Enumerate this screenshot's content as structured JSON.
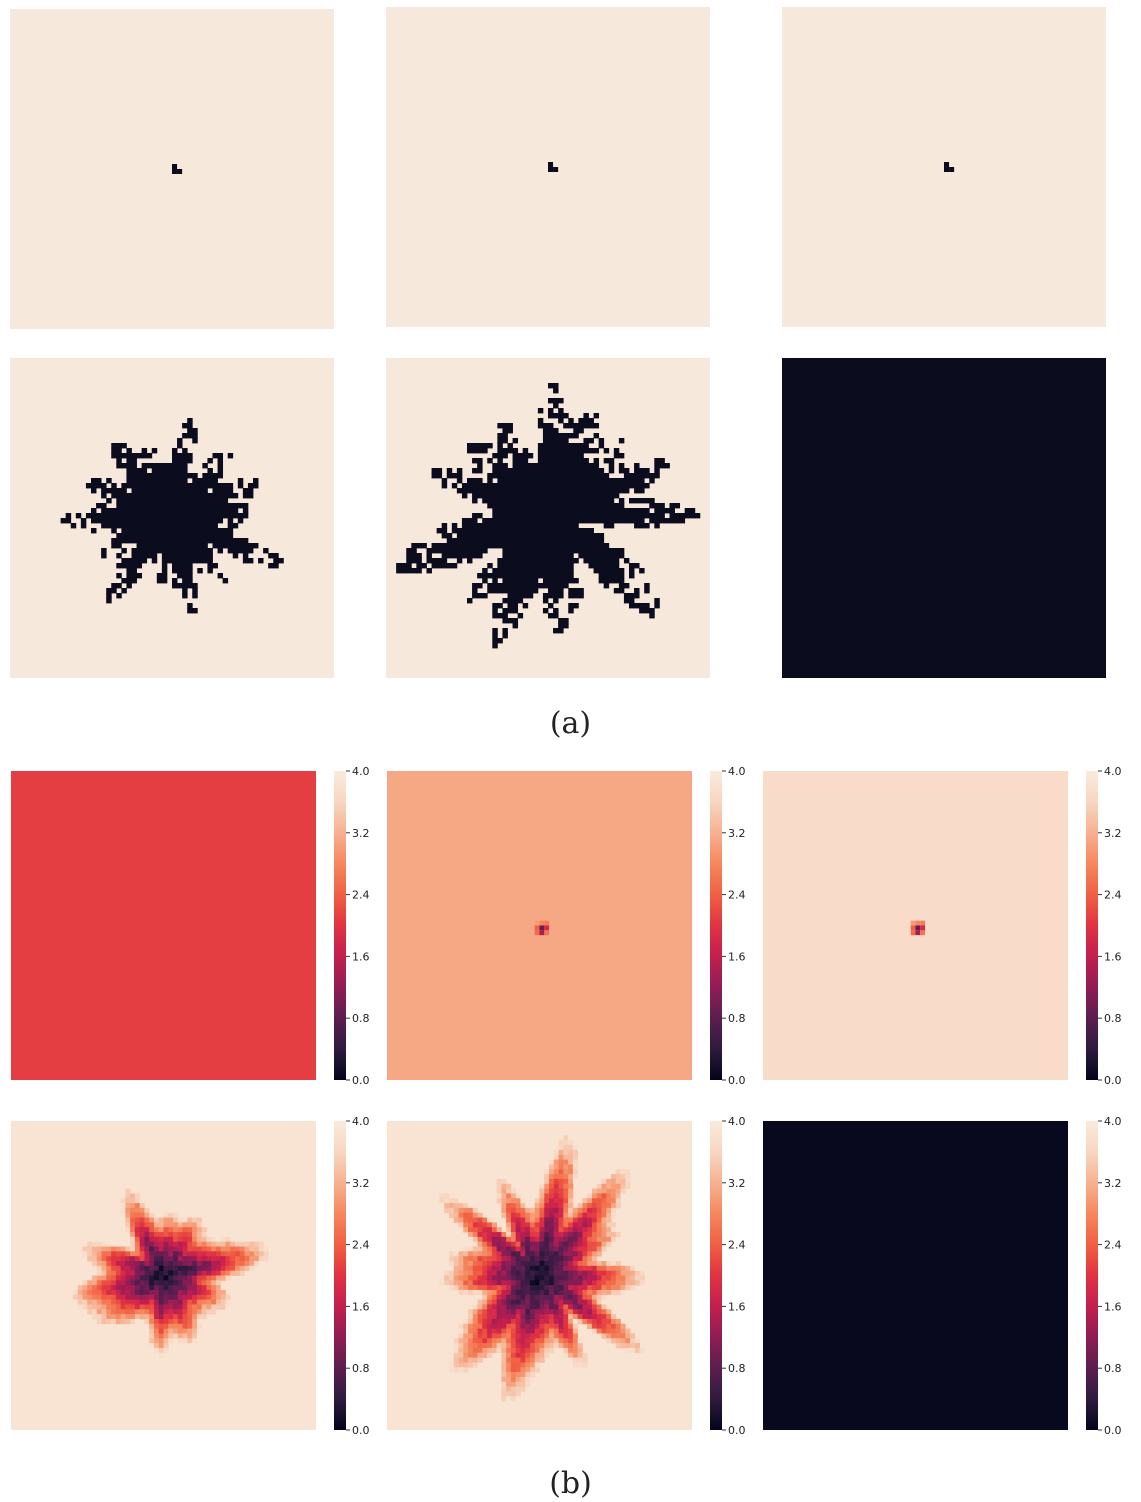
{
  "captions": {
    "a": "(a)",
    "b": "(b)"
  },
  "colors": {
    "background_cell": "#f6e8da",
    "occupied_cell": "#0b0c1e",
    "colormap": [
      "#03051a",
      "#2e1a3f",
      "#5b1e51",
      "#8f1d55",
      "#c21f4f",
      "#e13342",
      "#f06043",
      "#f5875d",
      "#f6b191",
      "#f7d6c1",
      "#faebdd"
    ]
  },
  "chart_data": [
    {
      "type": "heatmap",
      "group": "(a)",
      "panels": [
        {
          "kind": "binary",
          "state": "seed",
          "scale": 0.0
        },
        {
          "kind": "binary",
          "state": "seed",
          "scale": 0.0
        },
        {
          "kind": "binary",
          "state": "seed",
          "scale": 0.0
        },
        {
          "kind": "binary",
          "state": "cluster",
          "scale": 0.42
        },
        {
          "kind": "binary",
          "state": "cluster",
          "scale": 0.56
        },
        {
          "kind": "binary",
          "state": "filled",
          "scale": 1.0
        }
      ]
    },
    {
      "type": "heatmap",
      "group": "(b)",
      "colorbar": {
        "min": 0.0,
        "max": 4.0,
        "ticks": [
          "0.0",
          "0.8",
          "1.6",
          "2.4",
          "3.2",
          "4.0"
        ]
      },
      "panels": [
        {
          "kind": "uniform",
          "value": 2.1
        },
        {
          "kind": "seed",
          "value": 3.1
        },
        {
          "kind": "seed",
          "value": 3.7
        },
        {
          "kind": "cluster",
          "value": 3.85,
          "scale": 0.42
        },
        {
          "kind": "cluster",
          "value": 3.85,
          "scale": 0.56
        },
        {
          "kind": "uniform",
          "value": 0.05
        }
      ]
    }
  ]
}
